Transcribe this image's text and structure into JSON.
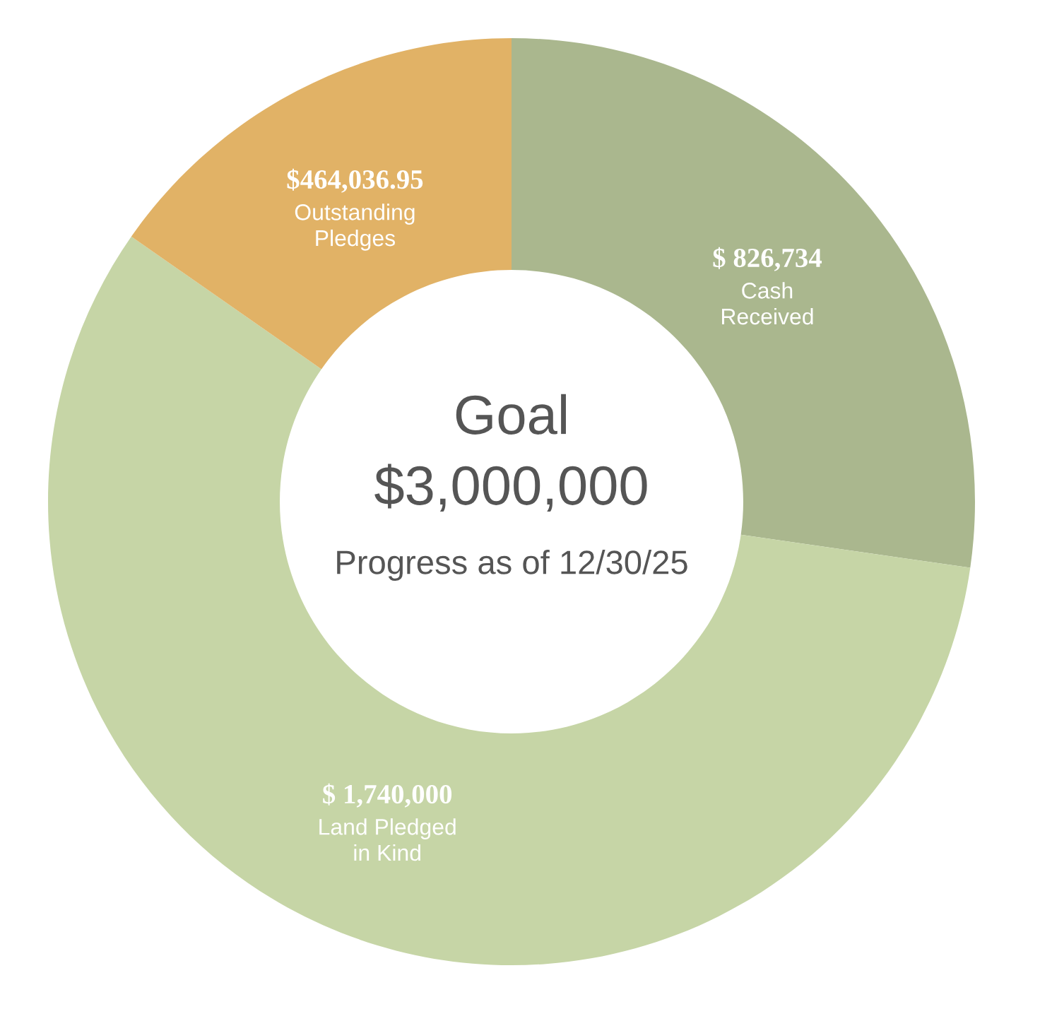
{
  "chart_data": {
    "type": "donut",
    "title": "Goal",
    "subtitle": "$3,000,000",
    "annotations": [
      "Progress as of 12/30/25"
    ],
    "categories": [
      "Cash\nReceived",
      "Land Pledged\nin Kind",
      "Outstanding\nPledges"
    ],
    "values": [
      826734,
      1740000,
      464036.95
    ],
    "value_labels": [
      "$ 826,734",
      "$ 1,740,000",
      "$464,036.95"
    ],
    "colors": [
      "#aab78e",
      "#c6d5a6",
      "#e1b266"
    ],
    "legend": false
  }
}
